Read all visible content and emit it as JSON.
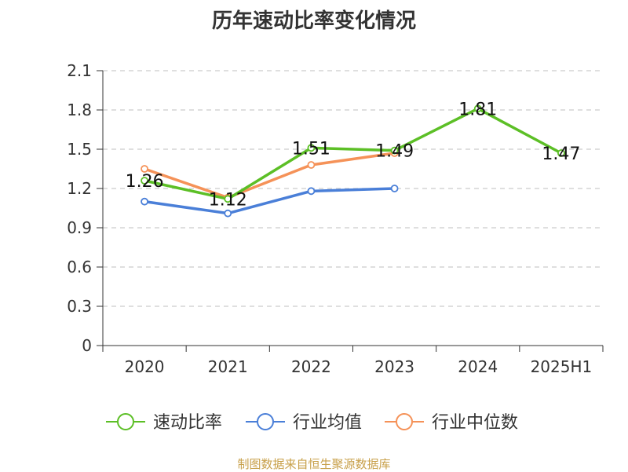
{
  "chart_data": {
    "type": "line",
    "title": "历年速动比率变化情况",
    "categories": [
      "2020",
      "2021",
      "2022",
      "2023",
      "2024",
      "2025H1"
    ],
    "ylim": [
      0,
      2.1
    ],
    "yticks": [
      "0",
      "0.3",
      "0.6",
      "0.9",
      "1.2",
      "1.5",
      "1.8",
      "2.1"
    ],
    "grid": true,
    "legend_position": "bottom",
    "series": [
      {
        "name": "速动比率",
        "color": "#5cbf26",
        "values": [
          1.26,
          1.12,
          1.51,
          1.49,
          1.81,
          1.47
        ],
        "labels": [
          "1.26",
          "1.12",
          "1.51",
          "1.49",
          "1.81",
          "1.47"
        ],
        "show_labels": true
      },
      {
        "name": "行业均值",
        "color": "#4a7fd8",
        "values": [
          1.1,
          1.01,
          1.18,
          1.2,
          null,
          null
        ],
        "show_labels": false
      },
      {
        "name": "行业中位数",
        "color": "#f59258",
        "values": [
          1.35,
          1.13,
          1.38,
          1.47,
          null,
          null
        ],
        "show_labels": false
      }
    ]
  },
  "footer": {
    "source": "制图数据来自恒生聚源数据库"
  }
}
